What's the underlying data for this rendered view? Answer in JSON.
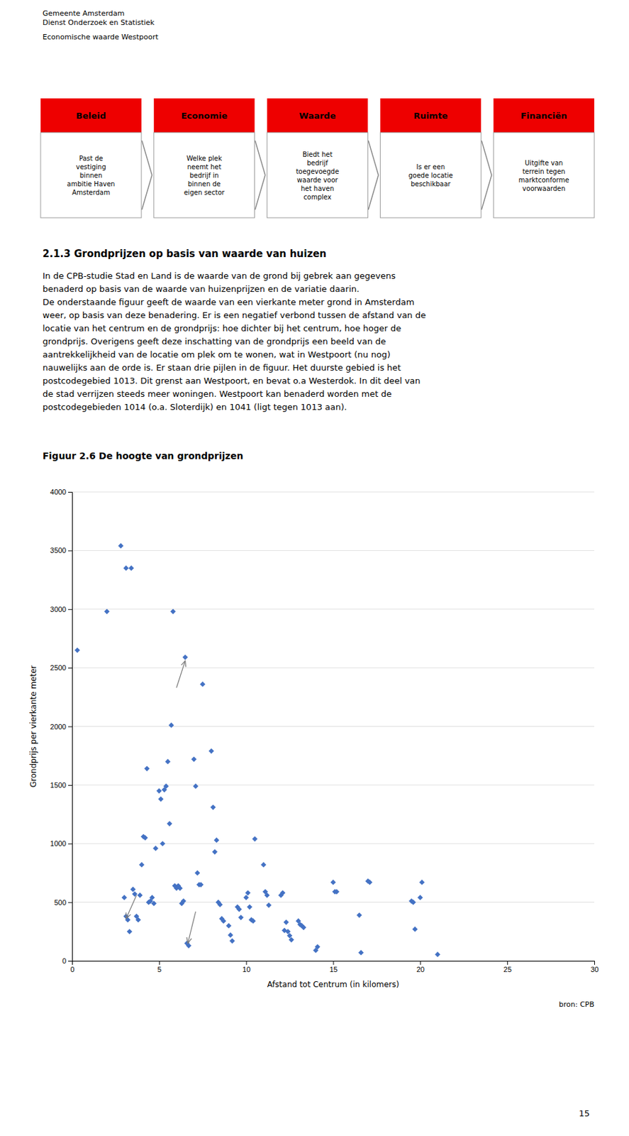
{
  "page": {
    "title_line1": "Gemeente Amsterdam",
    "title_line2": "Dienst Onderzoek en Statistiek",
    "subtitle": "Economische waarde Westpoort",
    "box_color": "#EE0000",
    "header_boxes": [
      {
        "label": "Beleid",
        "text": "Past de\nvestiging\nbinnen\nambitie Haven\nAmsterdam"
      },
      {
        "label": "Economie",
        "text": "Welke plek\nneemt het\nbedrijf in\nbinnen de\neigen sector"
      },
      {
        "label": "Waarde",
        "text": "Biedt het\nbedrijf\ntoegevoegde\nwaarde voor\nhet haven\ncomplex"
      },
      {
        "label": "Ruimte",
        "text": "Is er een\ngoede locatie\nbeschikbaar"
      },
      {
        "label": "Financiën",
        "text": "Uitgifte van\nterrein tegen\nmarktconforme\nvoorwaarden"
      }
    ],
    "section_title": "2.1.3  Grondprijzen op basis van waarde van huizen",
    "body_text": "In de CPB-studie Stad en Land is de waarde van de grond bij gebrek aan gegevens\nbenaderd op basis van de waarde van huizenprijzen en de variatie daarin.\nDe onderstaande figuur geeft de waarde van een vierkante meter grond in Amsterdam\nweer, op basis van deze benadering. Er is een negatief verbond tussen de afstand van de\nlocatie van het centrum en de grondprijs: hoe dichter bij het centrum, hoe hoger de\ngrondprijs. Overigens geeft deze inschatting van de grondprijs een beeld van de\naantrekkelijkheid van de locatie om plek om te wonen, wat in Westpoort (nu nog)\nnauwelijks aan de orde is. Er staan drie pijlen in de figuur. Het duurste gebied is het\npostcodegebied 1013. Dit grenst aan Westpoort, en bevat o.a Westerdok. In dit deel van\nde stad verrijzen steeds meer woningen. Westpoort kan benaderd worden met de\npostcodegebieden 1014 (o.a. Sloterdijk) en 1041 (ligt tegen 1013 aan).",
    "page_number": "15"
  },
  "chart_data": {
    "type": "scatter",
    "title": "Figuur 2.6  De hoogte van grondprijzen",
    "x_label": "Afstand tot Centrum  (in kilomers)",
    "y_label": "Grondprijs per vierkante meter",
    "source": "bron: CPB",
    "color": "#4472C4",
    "marker": "diamond",
    "grid": "y",
    "xlim": [
      0,
      30
    ],
    "ylim": [
      0,
      4000
    ],
    "xticks": [
      0,
      5,
      10,
      15,
      20,
      25,
      30
    ],
    "yticks": [
      0,
      500,
      1000,
      1500,
      2000,
      2500,
      3000,
      3500,
      4000
    ],
    "x": [
      0.3,
      2.0,
      2.8,
      3.1,
      3.4,
      3.0,
      3.1,
      3.2,
      3.3,
      3.5,
      3.6,
      3.7,
      3.8,
      3.9,
      4.0,
      4.1,
      4.2,
      4.3,
      4.4,
      4.5,
      4.6,
      4.7,
      4.8,
      5.0,
      5.1,
      5.2,
      5.3,
      5.4,
      5.5,
      5.6,
      5.7,
      5.8,
      5.9,
      6.0,
      6.1,
      6.2,
      6.3,
      6.4,
      6.5,
      6.6,
      6.7,
      7.0,
      7.1,
      7.2,
      7.3,
      7.4,
      7.5,
      8.0,
      8.1,
      8.2,
      8.3,
      8.4,
      8.5,
      8.6,
      8.7,
      9.0,
      9.1,
      9.2,
      9.5,
      9.6,
      9.7,
      10.0,
      10.1,
      10.2,
      10.3,
      10.4,
      10.5,
      11.0,
      11.1,
      11.2,
      11.3,
      12.0,
      12.1,
      12.2,
      12.3,
      12.4,
      12.5,
      12.6,
      13.0,
      13.1,
      13.2,
      13.3,
      14.0,
      14.1,
      15.0,
      15.1,
      15.2,
      16.5,
      16.6,
      17.0,
      17.1,
      19.5,
      19.6,
      19.7,
      20.0,
      20.1,
      21.0
    ],
    "values": [
      2650,
      2980,
      3540,
      3350,
      3350,
      540,
      380,
      350,
      250,
      610,
      570,
      380,
      350,
      560,
      820,
      1060,
      1050,
      1640,
      500,
      510,
      540,
      490,
      960,
      1450,
      1380,
      1000,
      1460,
      1490,
      1700,
      1170,
      2010,
      2980,
      640,
      620,
      640,
      620,
      490,
      510,
      2590,
      150,
      130,
      1720,
      1490,
      750,
      650,
      650,
      2360,
      1790,
      1310,
      930,
      1030,
      500,
      480,
      360,
      340,
      300,
      220,
      170,
      460,
      440,
      370,
      540,
      580,
      460,
      350,
      340,
      1040,
      820,
      590,
      560,
      475,
      560,
      580,
      260,
      330,
      250,
      215,
      180,
      340,
      310,
      300,
      285,
      90,
      120,
      670,
      590,
      590,
      390,
      70,
      680,
      670,
      510,
      500,
      270,
      540,
      670,
      55
    ],
    "annotations": [
      {
        "xy": [
          6.5,
          2560
        ],
        "xytext": [
          6.0,
          2330
        ]
      },
      {
        "xy": [
          6.65,
          150
        ],
        "xytext": [
          7.1,
          420
        ]
      },
      {
        "xy": [
          3.1,
          360
        ],
        "xytext": [
          3.7,
          560
        ]
      }
    ]
  }
}
